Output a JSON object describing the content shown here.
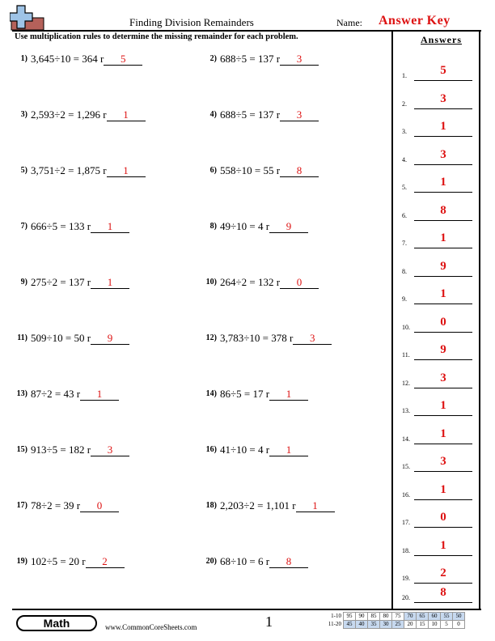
{
  "header": {
    "title": "Finding Division Remainders",
    "name_label": "Name:",
    "answer_key": "Answer Key"
  },
  "instructions": "Use multiplication rules to determine the missing remainder for each problem.",
  "problems": [
    {
      "num": "1)",
      "eq": "3,645÷10 = 364 r",
      "ans": "5"
    },
    {
      "num": "2)",
      "eq": "688÷5 = 137 r",
      "ans": "3"
    },
    {
      "num": "3)",
      "eq": "2,593÷2 = 1,296 r",
      "ans": "1"
    },
    {
      "num": "4)",
      "eq": "688÷5 = 137 r",
      "ans": "3"
    },
    {
      "num": "5)",
      "eq": "3,751÷2 = 1,875 r",
      "ans": "1"
    },
    {
      "num": "6)",
      "eq": "558÷10 = 55 r",
      "ans": "8"
    },
    {
      "num": "7)",
      "eq": "666÷5 = 133 r",
      "ans": "1"
    },
    {
      "num": "8)",
      "eq": "49÷10 = 4 r",
      "ans": "9"
    },
    {
      "num": "9)",
      "eq": "275÷2 = 137 r",
      "ans": "1"
    },
    {
      "num": "10)",
      "eq": "264÷2 = 132 r",
      "ans": "0"
    },
    {
      "num": "11)",
      "eq": "509÷10 = 50 r",
      "ans": "9"
    },
    {
      "num": "12)",
      "eq": "3,783÷10 = 378 r",
      "ans": "3"
    },
    {
      "num": "13)",
      "eq": "87÷2 = 43 r",
      "ans": "1"
    },
    {
      "num": "14)",
      "eq": "86÷5 = 17 r",
      "ans": "1"
    },
    {
      "num": "15)",
      "eq": "913÷5 = 182 r",
      "ans": "3"
    },
    {
      "num": "16)",
      "eq": "41÷10 = 4 r",
      "ans": "1"
    },
    {
      "num": "17)",
      "eq": "78÷2 = 39 r",
      "ans": "0"
    },
    {
      "num": "18)",
      "eq": "2,203÷2 = 1,101 r",
      "ans": "1"
    },
    {
      "num": "19)",
      "eq": "102÷5 = 20 r",
      "ans": "2"
    },
    {
      "num": "20)",
      "eq": "68÷10 = 6 r",
      "ans": "8"
    }
  ],
  "answers": {
    "header": "Answers",
    "items": [
      {
        "num": "1.",
        "val": "5"
      },
      {
        "num": "2.",
        "val": "3"
      },
      {
        "num": "3.",
        "val": "1"
      },
      {
        "num": "4.",
        "val": "3"
      },
      {
        "num": "5.",
        "val": "1"
      },
      {
        "num": "6.",
        "val": "8"
      },
      {
        "num": "7.",
        "val": "1"
      },
      {
        "num": "8.",
        "val": "9"
      },
      {
        "num": "9.",
        "val": "1"
      },
      {
        "num": "10.",
        "val": "0"
      },
      {
        "num": "11.",
        "val": "9"
      },
      {
        "num": "12.",
        "val": "3"
      },
      {
        "num": "13.",
        "val": "1"
      },
      {
        "num": "14.",
        "val": "1"
      },
      {
        "num": "15.",
        "val": "3"
      },
      {
        "num": "16.",
        "val": "1"
      },
      {
        "num": "17.",
        "val": "0"
      },
      {
        "num": "18.",
        "val": "1"
      },
      {
        "num": "19.",
        "val": "2"
      },
      {
        "num": "20.",
        "val": "8"
      }
    ]
  },
  "footer": {
    "badge": "Math",
    "site": "www.CommonCoreSheets.com",
    "page": "1",
    "score_rows": [
      {
        "label": "1-10",
        "cells": [
          "95",
          "90",
          "85",
          "80",
          "75",
          "70",
          "65",
          "60",
          "55",
          "50"
        ]
      },
      {
        "label": "11-20",
        "cells": [
          "45",
          "40",
          "35",
          "30",
          "25",
          "20",
          "15",
          "10",
          "5",
          "0"
        ]
      }
    ]
  },
  "colors": {
    "answer_red": "#dd1111",
    "score_highlight": "#c7d9ef",
    "logo_blue": "#9ec3e6",
    "logo_red": "#b5615a"
  }
}
